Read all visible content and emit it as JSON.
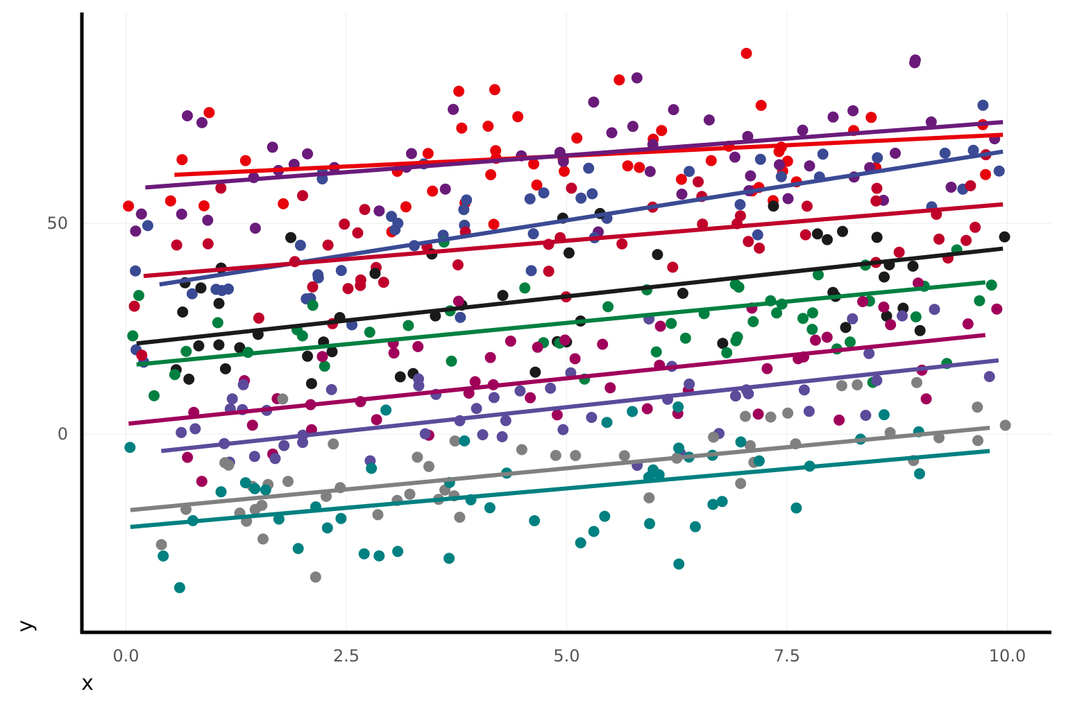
{
  "chart_data": {
    "type": "scatter",
    "xlabel": "x",
    "ylabel": "y",
    "xlim": [
      -0.5,
      10.5
    ],
    "ylim": [
      -47,
      100
    ],
    "x_ticks": [
      0.0,
      2.5,
      5.0,
      7.5,
      10.0
    ],
    "x_tick_labels": [
      "0.0",
      "2.5",
      "5.0",
      "7.5",
      "10.0"
    ],
    "y_ticks": [
      0,
      50
    ],
    "y_tick_labels": [
      "0",
      "50"
    ],
    "grid": true,
    "legend": "none",
    "n_points_per_series": 50,
    "series": [
      {
        "color": "#E8000B",
        "trend": {
          "x0": 0.55,
          "y0": 61.5,
          "x1": 9.95,
          "y1": 71.0
        },
        "spread": 10,
        "seed": 11
      },
      {
        "color": "#6A1B7A",
        "trend": {
          "x0": 0.22,
          "y0": 58.5,
          "x1": 9.95,
          "y1": 74.0
        },
        "spread": 10,
        "seed": 23
      },
      {
        "color": "#3A4A94",
        "trend": {
          "x0": 0.38,
          "y0": 35.5,
          "x1": 9.95,
          "y1": 67.0
        },
        "spread": 10,
        "seed": 37
      },
      {
        "color": "#C0002A",
        "trend": {
          "x0": 0.2,
          "y0": 37.5,
          "x1": 9.95,
          "y1": 54.5
        },
        "spread": 10,
        "seed": 41
      },
      {
        "color": "#1A1A1A",
        "trend": {
          "x0": 0.12,
          "y0": 21.5,
          "x1": 9.95,
          "y1": 44.0
        },
        "spread": 10,
        "seed": 53
      },
      {
        "color": "#008040",
        "trend": {
          "x0": 0.12,
          "y0": 16.5,
          "x1": 9.75,
          "y1": 36.0
        },
        "spread": 10,
        "seed": 67
      },
      {
        "color": "#A0005A",
        "trend": {
          "x0": 0.03,
          "y0": 2.5,
          "x1": 9.75,
          "y1": 23.5
        },
        "spread": 10,
        "seed": 71
      },
      {
        "color": "#5B4B9A",
        "trend": {
          "x0": 0.4,
          "y0": -4.0,
          "x1": 9.9,
          "y1": 17.5
        },
        "spread": 10,
        "seed": 83
      },
      {
        "color": "#808080",
        "trend": {
          "x0": 0.05,
          "y0": -18.0,
          "x1": 9.8,
          "y1": 1.5
        },
        "spread": 10,
        "seed": 97
      },
      {
        "color": "#008080",
        "trend": {
          "x0": 0.05,
          "y0": -22.0,
          "x1": 9.8,
          "y1": -4.0
        },
        "spread": 10,
        "seed": 101
      }
    ]
  }
}
